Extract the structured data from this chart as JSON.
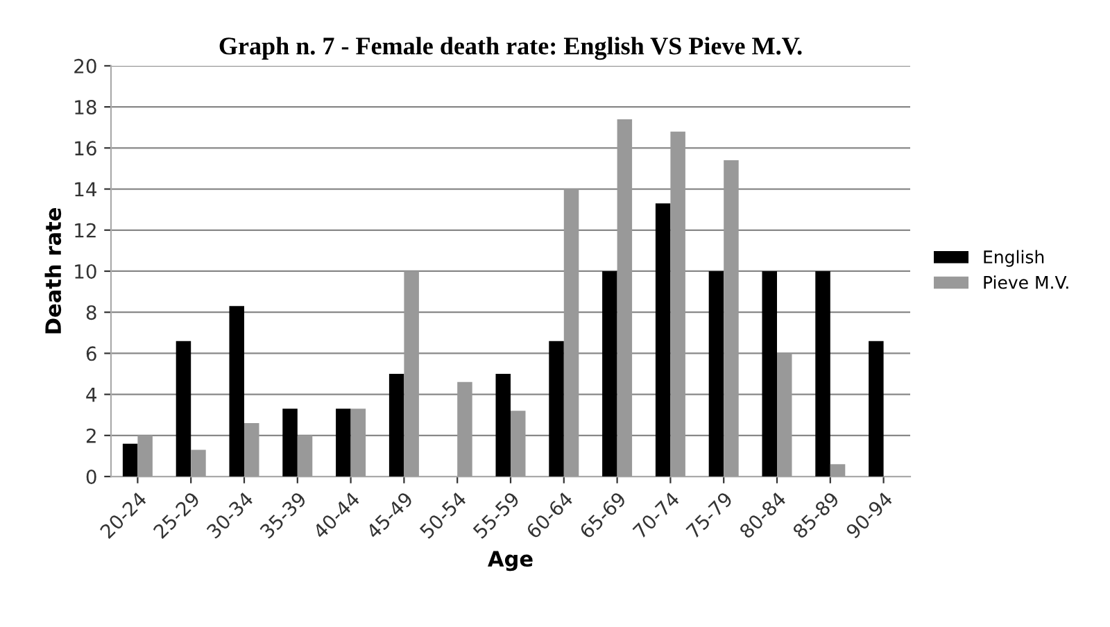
{
  "chart_data": {
    "type": "bar",
    "title": "Graph n. 7 - Female death rate: English VS Pieve M.V.",
    "xlabel": "Age",
    "ylabel": "Death rate",
    "categories": [
      "20-24",
      "25-29",
      "30-34",
      "35-39",
      "40-44",
      "45-49",
      "50-54",
      "55-59",
      "60-64",
      "65-69",
      "70-74",
      "75-79",
      "80-84",
      "85-89",
      "90-94"
    ],
    "series": [
      {
        "name": "English",
        "color": "#000000",
        "values": [
          1.6,
          6.6,
          8.3,
          3.3,
          3.3,
          5.0,
          0,
          5.0,
          6.6,
          10,
          13.3,
          10,
          10,
          10,
          6.6
        ]
      },
      {
        "name": "Pieve M.V.",
        "color": "#999999",
        "values": [
          2.0,
          1.3,
          2.6,
          2.0,
          3.3,
          10,
          4.6,
          3.2,
          14,
          17.4,
          16.8,
          15.4,
          6.0,
          0.6,
          0
        ]
      }
    ],
    "ylim": [
      0,
      20
    ],
    "yticks": [
      0,
      2,
      4,
      6,
      8,
      10,
      12,
      14,
      16,
      18,
      20
    ],
    "grid": "y",
    "legend": "right"
  }
}
